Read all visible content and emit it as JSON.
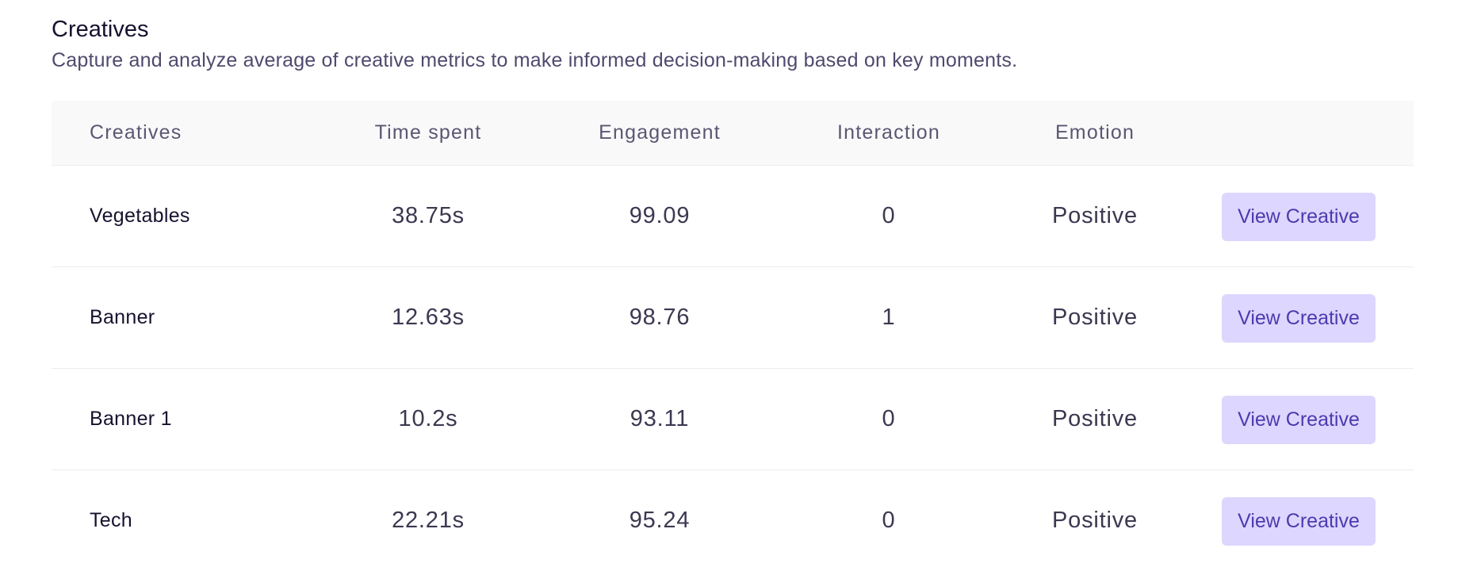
{
  "section": {
    "title": "Creatives",
    "subtitle": "Capture and analyze average of creative metrics to make informed decision-making based on key moments."
  },
  "table": {
    "headers": [
      "Creatives",
      "Time spent",
      "Engagement",
      "Interaction",
      "Emotion"
    ],
    "rows": [
      {
        "name": "Vegetables",
        "time": "38.75s",
        "engagement": "99.09",
        "interaction": "0",
        "emotion": "Positive",
        "action": "View Creative"
      },
      {
        "name": "Banner",
        "time": "12.63s",
        "engagement": "98.76",
        "interaction": "1",
        "emotion": "Positive",
        "action": "View Creative"
      },
      {
        "name": "Banner 1",
        "time": "10.2s",
        "engagement": "93.11",
        "interaction": "0",
        "emotion": "Positive",
        "action": "View Creative"
      },
      {
        "name": "Tech",
        "time": "22.21s",
        "engagement": "95.24",
        "interaction": "0",
        "emotion": "Positive",
        "action": "View Creative"
      }
    ]
  },
  "colors": {
    "button_bg": "#ddd6fe",
    "button_text": "#4c3aae",
    "header_bg": "#f9f9fa"
  }
}
